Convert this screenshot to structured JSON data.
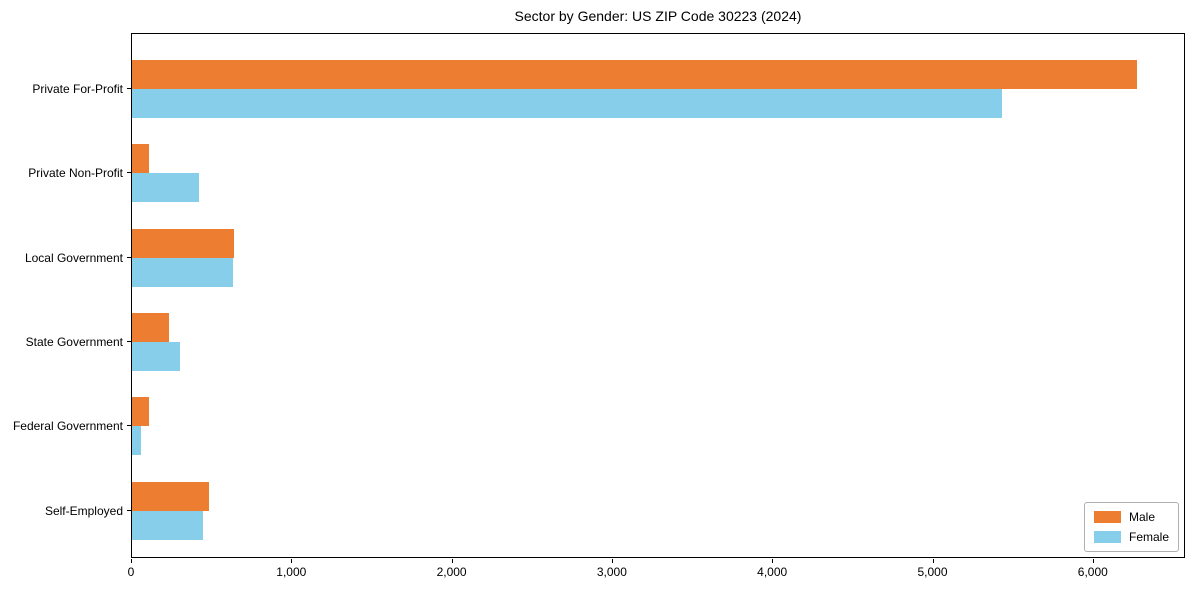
{
  "chart_data": {
    "type": "bar",
    "orientation": "horizontal",
    "title": "Sector by Gender: US ZIP Code 30223 (2024)",
    "categories": [
      "Private For-Profit",
      "Private Non-Profit",
      "Local Government",
      "State Government",
      "Federal Government",
      "Self-Employed"
    ],
    "series": [
      {
        "name": "Male",
        "color": "#ED7D31",
        "values": [
          6270,
          105,
          635,
          230,
          105,
          480
        ]
      },
      {
        "name": "Female",
        "color": "#87CEEB",
        "values": [
          5425,
          420,
          630,
          300,
          55,
          445
        ]
      }
    ],
    "xlabel": "",
    "ylabel": "",
    "xlim": [
      0,
      6575
    ],
    "x_ticks": [
      0,
      1000,
      2000,
      3000,
      4000,
      5000,
      6000
    ],
    "grid": false,
    "background": "#ffffff",
    "legend": {
      "position": "lower right",
      "entries": [
        "Male",
        "Female"
      ]
    }
  }
}
